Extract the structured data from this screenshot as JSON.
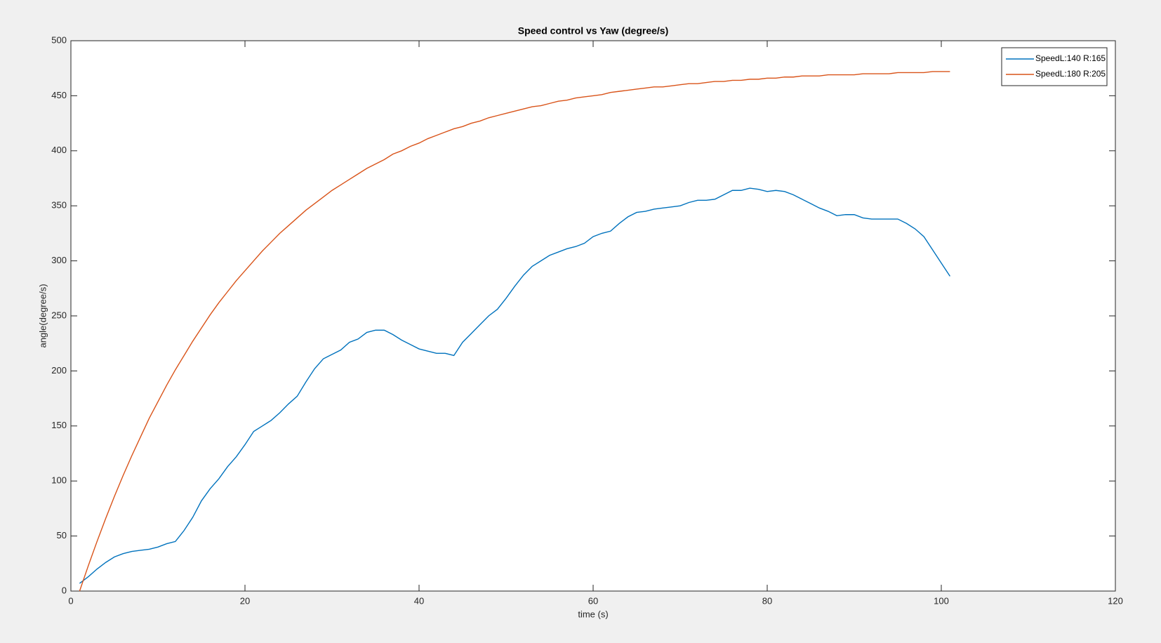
{
  "chart_data": {
    "type": "line",
    "title": "Speed control vs Yaw (degree/s)",
    "x_label": "time (s)",
    "y_label": "angle(degree/s)",
    "x": [
      1,
      2,
      3,
      4,
      5,
      6,
      7,
      8,
      9,
      10,
      11,
      12,
      13,
      14,
      15,
      16,
      17,
      18,
      19,
      20,
      21,
      22,
      23,
      24,
      25,
      26,
      27,
      28,
      29,
      30,
      31,
      32,
      33,
      34,
      35,
      36,
      37,
      38,
      39,
      40,
      41,
      42,
      43,
      44,
      45,
      46,
      47,
      48,
      49,
      50,
      51,
      52,
      53,
      54,
      55,
      56,
      57,
      58,
      59,
      60,
      61,
      62,
      63,
      64,
      65,
      66,
      67,
      68,
      69,
      70,
      71,
      72,
      73,
      74,
      75,
      76,
      77,
      78,
      79,
      80,
      81,
      82,
      83,
      84,
      85,
      86,
      87,
      88,
      89,
      90,
      91,
      92,
      93,
      94,
      95,
      96,
      97,
      98,
      99,
      100,
      101
    ],
    "series": [
      {
        "name": "SpeedL:140 R:165",
        "color": "#0072bd",
        "values": [
          7,
          13,
          20,
          26,
          31,
          34,
          36,
          37,
          38,
          40,
          43,
          45,
          55,
          67,
          82,
          93,
          102,
          113,
          122,
          133,
          145,
          150,
          155,
          162,
          170,
          177,
          190,
          202,
          211,
          215,
          219,
          226,
          229,
          235,
          237,
          237,
          233,
          228,
          224,
          220,
          218,
          216,
          216,
          214,
          226,
          234,
          242,
          250,
          256,
          266,
          277,
          287,
          295,
          300,
          305,
          308,
          311,
          313,
          316,
          322,
          325,
          327,
          334,
          340,
          344,
          345,
          347,
          348,
          349,
          350,
          353,
          355,
          355,
          356,
          360,
          364,
          364,
          366,
          365,
          363,
          364,
          363,
          360,
          356,
          352,
          348,
          345,
          341,
          342,
          342,
          339,
          338,
          338,
          338,
          338,
          334,
          329,
          322,
          310,
          298,
          286
        ]
      },
      {
        "name": "SpeedL:180 R:205",
        "color": "#d95319",
        "values": [
          0,
          23,
          45,
          66,
          86,
          105,
          123,
          140,
          157,
          172,
          187,
          201,
          214,
          227,
          239,
          251,
          262,
          272,
          282,
          291,
          300,
          309,
          317,
          325,
          332,
          339,
          346,
          352,
          358,
          364,
          369,
          374,
          379,
          384,
          388,
          392,
          397,
          400,
          404,
          407,
          411,
          414,
          417,
          420,
          422,
          425,
          427,
          430,
          432,
          434,
          436,
          438,
          440,
          441,
          443,
          445,
          446,
          448,
          449,
          450,
          451,
          453,
          454,
          455,
          456,
          457,
          458,
          458,
          459,
          460,
          461,
          461,
          462,
          463,
          463,
          464,
          464,
          465,
          465,
          466,
          466,
          467,
          467,
          468,
          468,
          468,
          469,
          469,
          469,
          469,
          470,
          470,
          470,
          470,
          471,
          471,
          471,
          471,
          472,
          472,
          472
        ]
      }
    ],
    "xlim": [
      0,
      120
    ],
    "ylim": [
      0,
      500
    ],
    "xticks": [
      0,
      20,
      40,
      60,
      80,
      100,
      120
    ],
    "yticks": [
      0,
      50,
      100,
      150,
      200,
      250,
      300,
      350,
      400,
      450,
      500
    ],
    "legend": "upper right",
    "grid": false
  }
}
